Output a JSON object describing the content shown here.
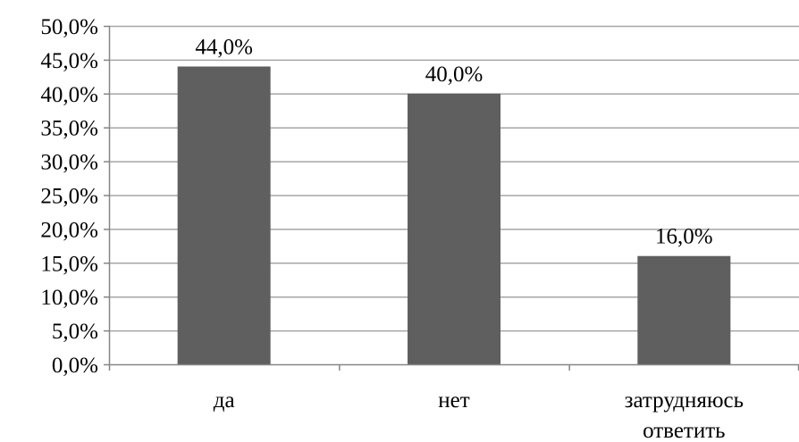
{
  "chart_data": {
    "type": "bar",
    "categories": [
      "да",
      "нет",
      "затрудняюсь ответить"
    ],
    "category_lines": [
      [
        "да"
      ],
      [
        "нет"
      ],
      [
        "затрудняюсь",
        "ответить"
      ]
    ],
    "values": [
      44.0,
      40.0,
      16.0
    ],
    "data_labels": [
      "44,0%",
      "40,0%",
      "16,0%"
    ],
    "ylim": [
      0,
      50
    ],
    "y_ticks": [
      0,
      5,
      10,
      15,
      20,
      25,
      30,
      35,
      40,
      45,
      50
    ],
    "y_tick_labels": [
      "0,0%",
      "5,0%",
      "10,0%",
      "15,0%",
      "20,0%",
      "25,0%",
      "30,0%",
      "35,0%",
      "40,0%",
      "45,0%",
      "50,0%"
    ],
    "title": "",
    "xlabel": "",
    "ylabel": "",
    "grid": true,
    "legend": "none",
    "bar_color": "#5f5f5f",
    "grid_color": "#a6a6a6",
    "axis_color": "#868686"
  }
}
